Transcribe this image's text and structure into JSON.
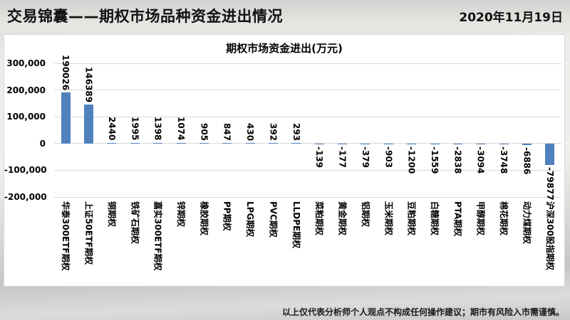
{
  "header": {
    "title": "交易锦囊——期权市场品种资金进出情况",
    "date": "2020年11月19日"
  },
  "footer": {
    "disclaimer": "以上仅代表分析师个人观点不构成任何操作建议；期市有风险入市需谨慎。"
  },
  "colors": {
    "bar": "#4F81BD",
    "gridline": "#D9D9D9",
    "text": "#000000"
  },
  "chart_data": {
    "type": "bar",
    "title": "期权市场资金进出(万元)",
    "unit": "万元",
    "categories": [
      "华泰300ETF期权",
      "上证50ETF期权",
      "铜期权",
      "铁矿石期权",
      "嘉实300ETF期权",
      "锌期权",
      "橡胶期权",
      "PP期权",
      "LPG期权",
      "PVC期权",
      "LLDPE期权",
      "菜粕期权",
      "黄金期权",
      "铝期权",
      "玉米期权",
      "豆粕期权",
      "白糖期权",
      "PTA期权",
      "甲醇期权",
      "棉花期权",
      "动力煤期权",
      "沪深300股指期权"
    ],
    "values": [
      190026,
      146389,
      2440,
      1995,
      1398,
      1074,
      905,
      847,
      430,
      392,
      293,
      -139,
      -177,
      -379,
      -903,
      -1200,
      -1559,
      -2838,
      -3094,
      -3748,
      -6886,
      -79877
    ],
    "ylim": [
      -200000,
      300000
    ],
    "ytick_interval": 100000,
    "yticks": [
      {
        "value": 300000,
        "label": "300,000"
      },
      {
        "value": 200000,
        "label": "200,000"
      },
      {
        "value": 100000,
        "label": "100,000"
      },
      {
        "value": 0,
        "label": "0"
      },
      {
        "value": -100000,
        "label": "-100,000"
      },
      {
        "value": -200000,
        "label": "-200,000"
      }
    ],
    "grid": true,
    "legend": false,
    "value_labels": "outside-end-rotated-90",
    "category_labels": "rotated-90"
  }
}
